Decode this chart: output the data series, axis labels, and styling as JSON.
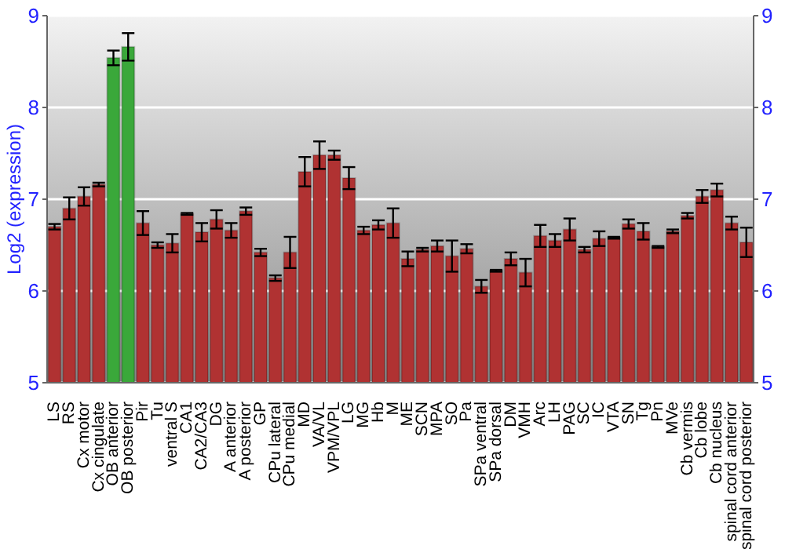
{
  "chart_data": {
    "type": "bar",
    "ylabel": "Log2 (expression)",
    "categories": [
      "LS",
      "RS",
      "Cx motor",
      "Cx cingulate",
      "OB anterior",
      "OB posterior",
      "Pir",
      "Tu",
      "ventral S",
      "CA1",
      "CA2/CA3",
      "DG",
      "A anterior",
      "A posterior",
      "GP",
      "CPu lateral",
      "CPu medial",
      "MD",
      "VA/VL",
      "VPM/VPL",
      "LG",
      "MG",
      "Hb",
      "M",
      "ME",
      "SCN",
      "MPA",
      "SO",
      "Pa",
      "SPa ventral",
      "SPa dorsal",
      "DM",
      "VMH",
      "Arc",
      "LH",
      "PAG",
      "SC",
      "IC",
      "VTA",
      "SN",
      "Tg",
      "Pn",
      "MVe",
      "Cb vermis",
      "Cb lobe",
      "Cb nucleus",
      "spinal cord anterior",
      "spinal cord posterior"
    ],
    "values": [
      6.7,
      6.9,
      7.03,
      7.16,
      8.54,
      8.66,
      6.74,
      6.5,
      6.52,
      6.84,
      6.64,
      6.78,
      6.66,
      6.87,
      6.42,
      6.14,
      6.42,
      7.3,
      7.48,
      7.48,
      7.23,
      6.66,
      6.72,
      6.74,
      6.35,
      6.45,
      6.49,
      6.38,
      6.46,
      6.05,
      6.22,
      6.35,
      6.2,
      6.6,
      6.55,
      6.67,
      6.45,
      6.57,
      6.58,
      6.73,
      6.65,
      6.48,
      6.65,
      6.82,
      7.03,
      7.1,
      6.74,
      6.53
    ],
    "errors": [
      0.03,
      0.12,
      0.1,
      0.02,
      0.08,
      0.15,
      0.13,
      0.03,
      0.1,
      0.01,
      0.1,
      0.1,
      0.08,
      0.04,
      0.04,
      0.03,
      0.17,
      0.16,
      0.15,
      0.05,
      0.12,
      0.04,
      0.05,
      0.16,
      0.08,
      0.02,
      0.06,
      0.17,
      0.05,
      0.07,
      0.01,
      0.07,
      0.15,
      0.12,
      0.07,
      0.12,
      0.03,
      0.08,
      0.01,
      0.05,
      0.09,
      0.01,
      0.02,
      0.03,
      0.07,
      0.07,
      0.07,
      0.16
    ],
    "colors": [
      "#b03232",
      "#b03232",
      "#b03232",
      "#b03232",
      "#3aa83a",
      "#3aa83a",
      "#b03232",
      "#b03232",
      "#b03232",
      "#b03232",
      "#b03232",
      "#b03232",
      "#b03232",
      "#b03232",
      "#b03232",
      "#b03232",
      "#b03232",
      "#b03232",
      "#b03232",
      "#b03232",
      "#b03232",
      "#b03232",
      "#b03232",
      "#b03232",
      "#b03232",
      "#b03232",
      "#b03232",
      "#b03232",
      "#b03232",
      "#b03232",
      "#b03232",
      "#b03232",
      "#b03232",
      "#b03232",
      "#b03232",
      "#b03232",
      "#b03232",
      "#b03232",
      "#b03232",
      "#b03232",
      "#b03232",
      "#b03232",
      "#b03232",
      "#b03232",
      "#b03232",
      "#b03232",
      "#b03232",
      "#b03232"
    ],
    "ylim": [
      5,
      9
    ],
    "yticks": [
      5,
      6,
      7,
      8,
      9
    ],
    "y2lim": [
      5,
      9
    ],
    "y2ticks": [
      5,
      6,
      7,
      8,
      9
    ],
    "grid": "y"
  }
}
